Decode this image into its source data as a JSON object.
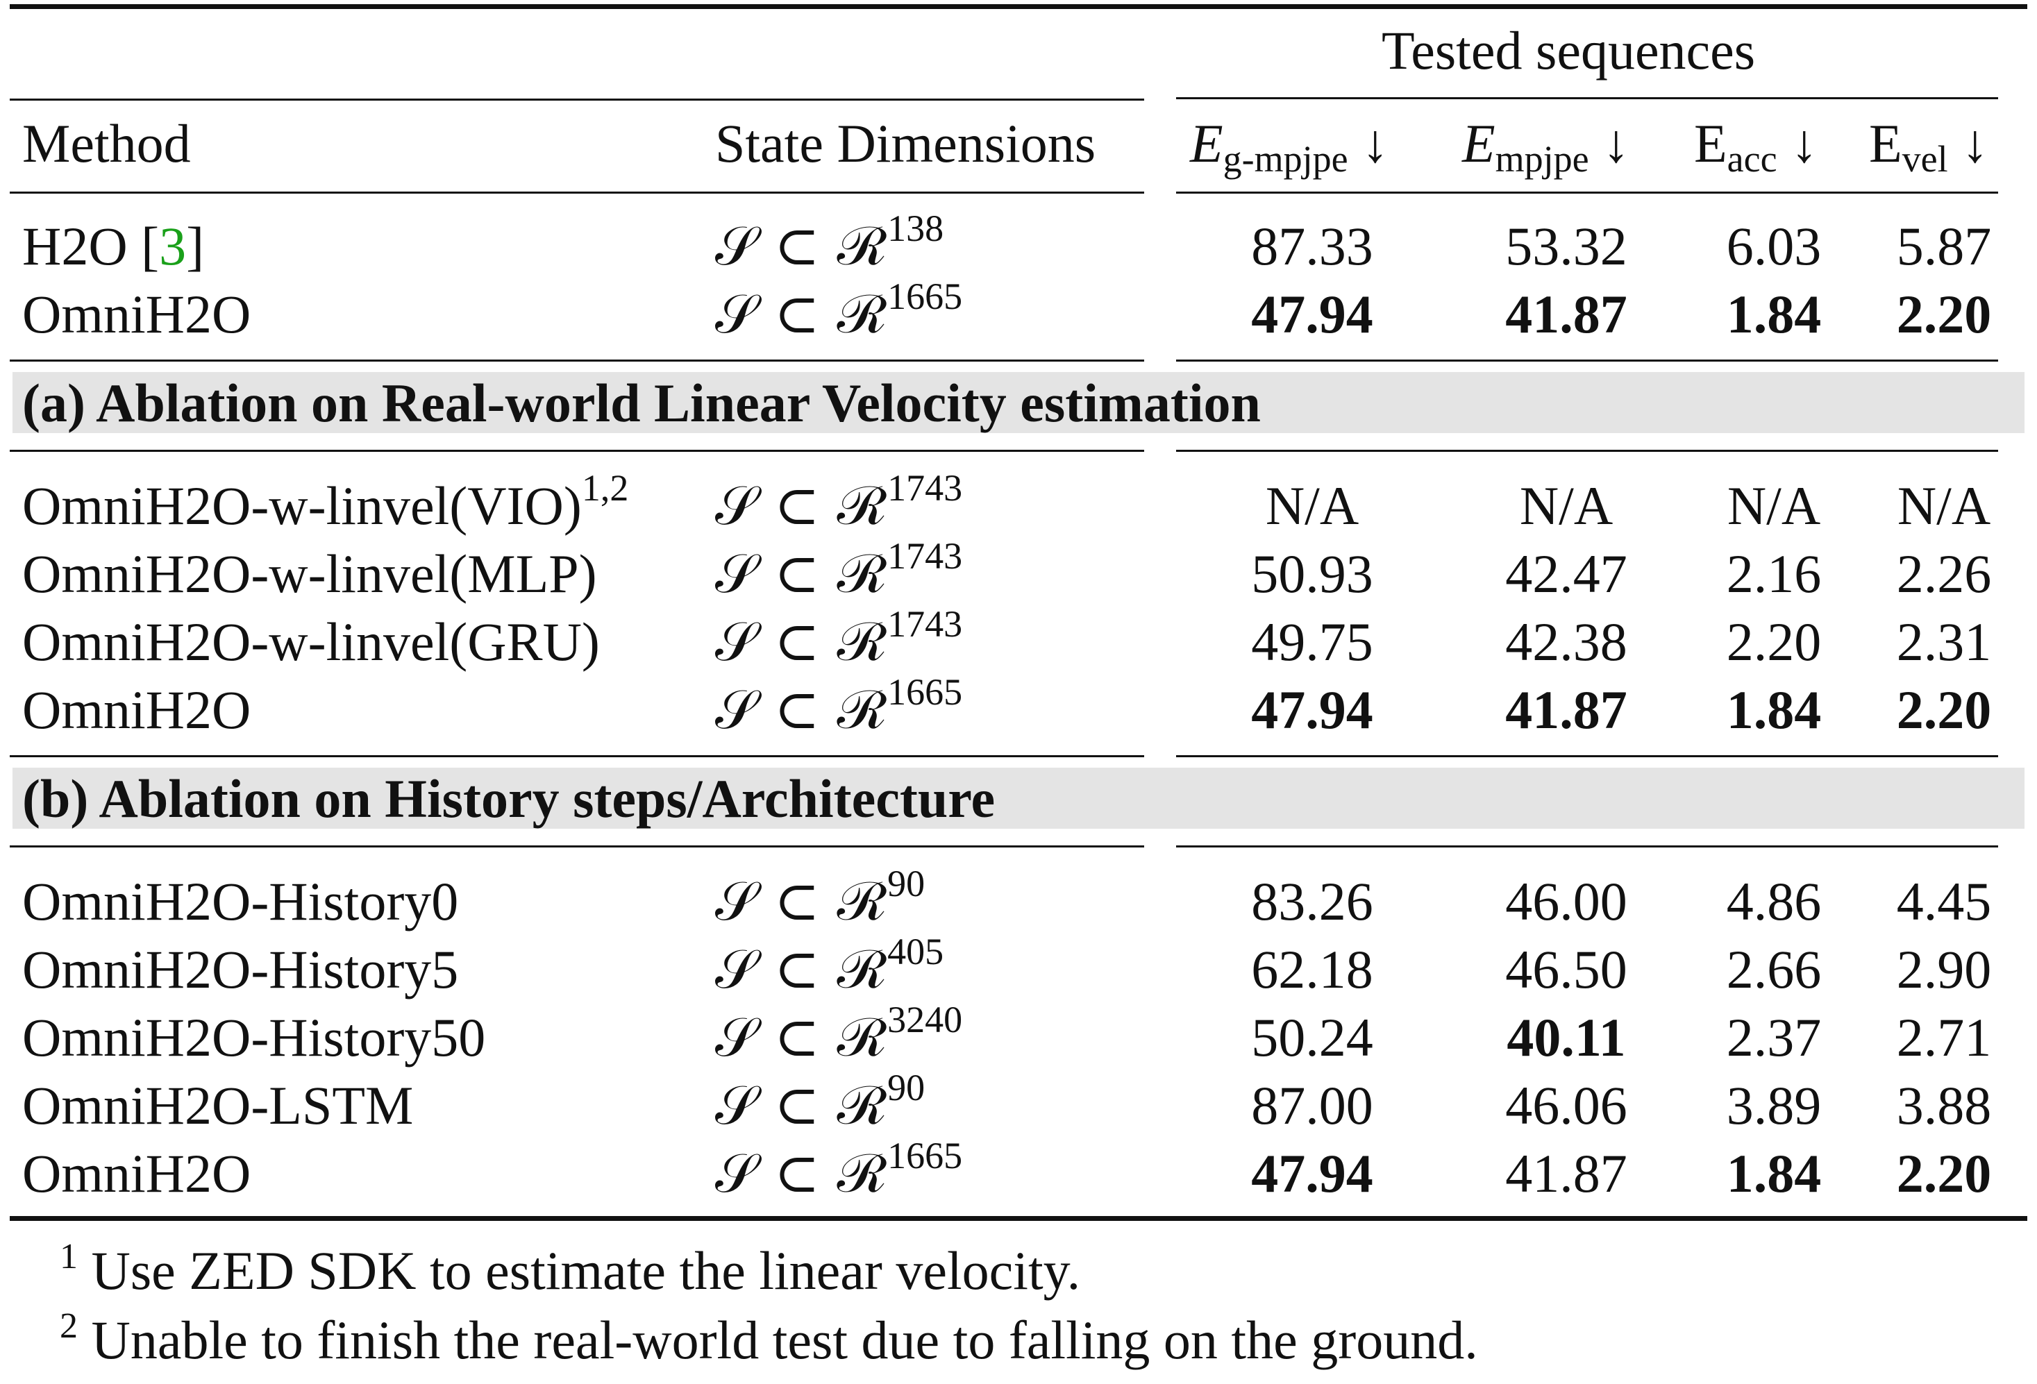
{
  "table": {
    "group_header": "Tested sequences",
    "headers": {
      "method": "Method",
      "state": "State Dimensions",
      "m1_base": "E",
      "m1_sub": "g-mpjpe",
      "m2_base": "E",
      "m2_sub": "mpjpe",
      "m3_base": "E",
      "m3_sub": "acc",
      "m4_base": "E",
      "m4_sub": "vel",
      "arrow": "↓"
    },
    "state_prefix": "𝒮 ⊂ ℛ",
    "top_rows": [
      {
        "method": "H2O [",
        "cite": "3",
        "method_tail": "]",
        "dim": "138",
        "v": [
          "87.33",
          "53.32",
          "6.03",
          "5.87"
        ],
        "bold": [
          false,
          false,
          false,
          false
        ]
      },
      {
        "method": "OmniH2O",
        "cite": "",
        "method_tail": "",
        "dim": "1665",
        "v": [
          "47.94",
          "41.87",
          "1.84",
          "2.20"
        ],
        "bold": [
          true,
          true,
          true,
          true
        ]
      }
    ],
    "section_a": {
      "title": "(a) Ablation on Real-world Linear Velocity estimation",
      "rows": [
        {
          "method": "OmniH2O-w-linvel(VIO)",
          "mark": "1,2",
          "dim": "1743",
          "v": [
            "N/A",
            "N/A",
            "N/A",
            "N/A"
          ],
          "bold": [
            false,
            false,
            false,
            false
          ]
        },
        {
          "method": "OmniH2O-w-linvel(MLP)",
          "mark": "",
          "dim": "1743",
          "v": [
            "50.93",
            "42.47",
            "2.16",
            "2.26"
          ],
          "bold": [
            false,
            false,
            false,
            false
          ]
        },
        {
          "method": "OmniH2O-w-linvel(GRU)",
          "mark": "",
          "dim": "1743",
          "v": [
            "49.75",
            "42.38",
            "2.20",
            "2.31"
          ],
          "bold": [
            false,
            false,
            false,
            false
          ]
        },
        {
          "method": "OmniH2O",
          "mark": "",
          "dim": "1665",
          "v": [
            "47.94",
            "41.87",
            "1.84",
            "2.20"
          ],
          "bold": [
            true,
            true,
            true,
            true
          ]
        }
      ]
    },
    "section_b": {
      "title": "(b) Ablation on History steps/Architecture",
      "rows": [
        {
          "method": "OmniH2O-History0",
          "dim": "90",
          "v": [
            "83.26",
            "46.00",
            "4.86",
            "4.45"
          ],
          "bold": [
            false,
            false,
            false,
            false
          ]
        },
        {
          "method": "OmniH2O-History5",
          "dim": "405",
          "v": [
            "62.18",
            "46.50",
            "2.66",
            "2.90"
          ],
          "bold": [
            false,
            false,
            false,
            false
          ]
        },
        {
          "method": "OmniH2O-History50",
          "dim": "3240",
          "v": [
            "50.24",
            "40.11",
            "2.37",
            "2.71"
          ],
          "bold": [
            false,
            true,
            false,
            false
          ]
        },
        {
          "method": "OmniH2O-LSTM",
          "dim": "90",
          "v": [
            "87.00",
            "46.06",
            "3.89",
            "3.88"
          ],
          "bold": [
            false,
            false,
            false,
            false
          ]
        },
        {
          "method": "OmniH2O",
          "dim": "1665",
          "v": [
            "47.94",
            "41.87",
            "1.84",
            "2.20"
          ],
          "bold": [
            true,
            false,
            true,
            true
          ]
        }
      ]
    },
    "footnotes": [
      {
        "mark": "1",
        "text": "Use ZED SDK to estimate the linear velocity."
      },
      {
        "mark": "2",
        "text": "Unable to finish the real-world test due to falling on the ground."
      }
    ]
  },
  "colors": {
    "citation": "#1aa01a",
    "band": "#e4e4e4",
    "text": "#111111"
  }
}
